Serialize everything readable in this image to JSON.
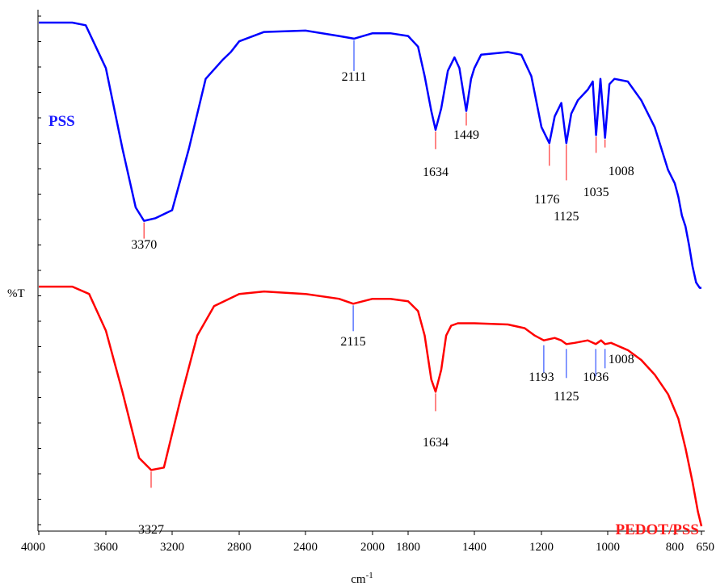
{
  "chart_data": {
    "type": "line",
    "title": "",
    "xlabel": "cm-1",
    "ylabel": "%T",
    "xlim": [
      4000,
      650
    ],
    "x_reversed": true,
    "xticks": [
      "4000",
      "3600",
      "3200",
      "2800",
      "2400",
      "2000",
      "1800",
      "1400",
      "1200",
      "1000",
      "800",
      "650"
    ],
    "grid": false,
    "series": [
      {
        "name": "PSS",
        "color": "#0000ff",
        "x": [
          4000,
          3800,
          3720,
          3600,
          3500,
          3420,
          3370,
          3300,
          3200,
          3100,
          3000,
          2900,
          2850,
          2800,
          2650,
          2400,
          2200,
          2111,
          2000,
          1900,
          1800,
          1740,
          1700,
          1660,
          1634,
          1600,
          1560,
          1520,
          1490,
          1449,
          1420,
          1400,
          1380,
          1340,
          1300,
          1260,
          1230,
          1200,
          1176,
          1160,
          1140,
          1125,
          1110,
          1090,
          1060,
          1045,
          1035,
          1022,
          1008,
          995,
          980,
          940,
          900,
          860,
          820,
          800,
          780,
          760,
          740,
          720,
          700,
          680,
          660,
          650
        ],
        "y": [
          97,
          97,
          96,
          80,
          50,
          28,
          23,
          24,
          27,
          50,
          76,
          83,
          86,
          90,
          93.5,
          94,
          92,
          91,
          93,
          93,
          92,
          88,
          77,
          64,
          57,
          65,
          79,
          84,
          80,
          64,
          76,
          80,
          85,
          85.5,
          86,
          85,
          77,
          58,
          52,
          62,
          67,
          52,
          63,
          68,
          72,
          75,
          55,
          76,
          54,
          74,
          76,
          75,
          68,
          58,
          42,
          37,
          32,
          25,
          21,
          14,
          6,
          0,
          -2,
          -2
        ]
      },
      {
        "name": "PEDOT/PSS",
        "color": "#ff0000",
        "x": [
          4000,
          3800,
          3700,
          3600,
          3500,
          3400,
          3327,
          3250,
          3150,
          3050,
          2950,
          2800,
          2650,
          2400,
          2200,
          2115,
          2000,
          1900,
          1800,
          1740,
          1700,
          1660,
          1634,
          1600,
          1570,
          1540,
          1500,
          1400,
          1300,
          1250,
          1220,
          1193,
          1160,
          1140,
          1125,
          1100,
          1060,
          1036,
          1020,
          1008,
          990,
          940,
          900,
          860,
          820,
          780,
          740,
          700,
          670,
          650
        ],
        "y": [
          98,
          98,
          95,
          80,
          55,
          28,
          23,
          24,
          52,
          78,
          90,
          95,
          96,
          95,
          93,
          91,
          93,
          93,
          92,
          88,
          78,
          60,
          55,
          64,
          78,
          82,
          83,
          83,
          82.5,
          81,
          78,
          76,
          77,
          76,
          74.5,
          75,
          76,
          74.5,
          76,
          74.5,
          75,
          72,
          68,
          62,
          54,
          44,
          32,
          18,
          6,
          0
        ]
      }
    ],
    "annotations": [
      {
        "series": "PSS",
        "label": "3370",
        "x": 3370
      },
      {
        "series": "PSS",
        "label": "2111",
        "x": 2111
      },
      {
        "series": "PSS",
        "label": "1634",
        "x": 1634
      },
      {
        "series": "PSS",
        "label": "1449",
        "x": 1449
      },
      {
        "series": "PSS",
        "label": "1176",
        "x": 1176
      },
      {
        "series": "PSS",
        "label": "1125",
        "x": 1125
      },
      {
        "series": "PSS",
        "label": "1035",
        "x": 1035
      },
      {
        "series": "PSS",
        "label": "1008",
        "x": 1008
      },
      {
        "series": "PEDOT/PSS",
        "label": "3327",
        "x": 3327
      },
      {
        "series": "PEDOT/PSS",
        "label": "2115",
        "x": 2115
      },
      {
        "series": "PEDOT/PSS",
        "label": "1634",
        "x": 1634
      },
      {
        "series": "PEDOT/PSS",
        "label": "1193",
        "x": 1193
      },
      {
        "series": "PEDOT/PSS",
        "label": "1125",
        "x": 1125
      },
      {
        "series": "PEDOT/PSS",
        "label": "1036",
        "x": 1036
      },
      {
        "series": "PEDOT/PSS",
        "label": "1008",
        "x": 1008
      }
    ]
  }
}
